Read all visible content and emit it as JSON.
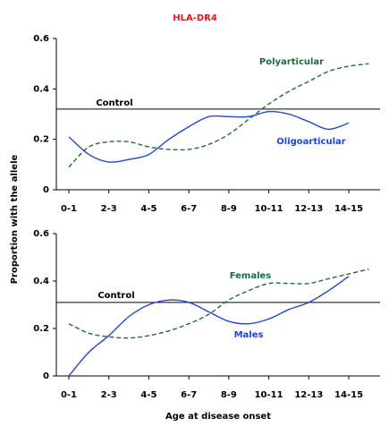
{
  "title": "HLA-DR4",
  "ylabel": "Proportion with the allele",
  "xlabel": "Age at disease onset",
  "chart_data": [
    {
      "type": "line",
      "categories": [
        "0-1",
        null,
        "2-3",
        null,
        "4-5",
        null,
        "6-7",
        null,
        "8-9",
        null,
        "10-11",
        null,
        "12-13",
        null,
        "14-15",
        null
      ],
      "ylim": [
        0,
        0.6
      ],
      "yticks": [
        0,
        0.2,
        0.4,
        0.6
      ],
      "reference": {
        "label": "Control",
        "value": 0.32
      },
      "series": [
        {
          "name": "Polyarticular",
          "color": "#1b6b3e",
          "dash": true,
          "values": [
            0.09,
            0.17,
            0.19,
            0.19,
            0.17,
            0.16,
            0.16,
            0.18,
            0.22,
            0.28,
            0.34,
            0.39,
            0.43,
            0.47,
            0.49,
            0.5
          ]
        },
        {
          "name": "Oligoarticular",
          "color": "#1f44d6",
          "dash": false,
          "values": [
            0.21,
            0.14,
            0.11,
            0.12,
            0.14,
            0.2,
            0.25,
            0.29,
            0.29,
            0.29,
            0.31,
            0.3,
            0.27,
            0.24,
            0.265,
            null
          ]
        }
      ]
    },
    {
      "type": "line",
      "categories": [
        "0-1",
        null,
        "2-3",
        null,
        "4-5",
        null,
        "6-7",
        null,
        "8-9",
        null,
        "10-11",
        null,
        "12-13",
        null,
        "14-15",
        null
      ],
      "ylim": [
        0,
        0.6
      ],
      "yticks": [
        0,
        0.2,
        0.4,
        0.6
      ],
      "reference": {
        "label": "Control",
        "value": 0.31
      },
      "series": [
        {
          "name": "Females",
          "color": "#1b6b3e",
          "dash": true,
          "values": [
            0.22,
            0.18,
            0.165,
            0.16,
            0.17,
            0.19,
            0.22,
            0.26,
            0.32,
            0.36,
            0.39,
            0.39,
            0.39,
            0.41,
            0.43,
            0.45
          ]
        },
        {
          "name": "Males",
          "color": "#1f44d6",
          "dash": false,
          "values": [
            0,
            0.1,
            0.17,
            0.25,
            0.3,
            0.32,
            0.31,
            0.27,
            0.23,
            0.22,
            0.24,
            0.28,
            0.31,
            0.36,
            0.42,
            null
          ]
        }
      ]
    }
  ]
}
